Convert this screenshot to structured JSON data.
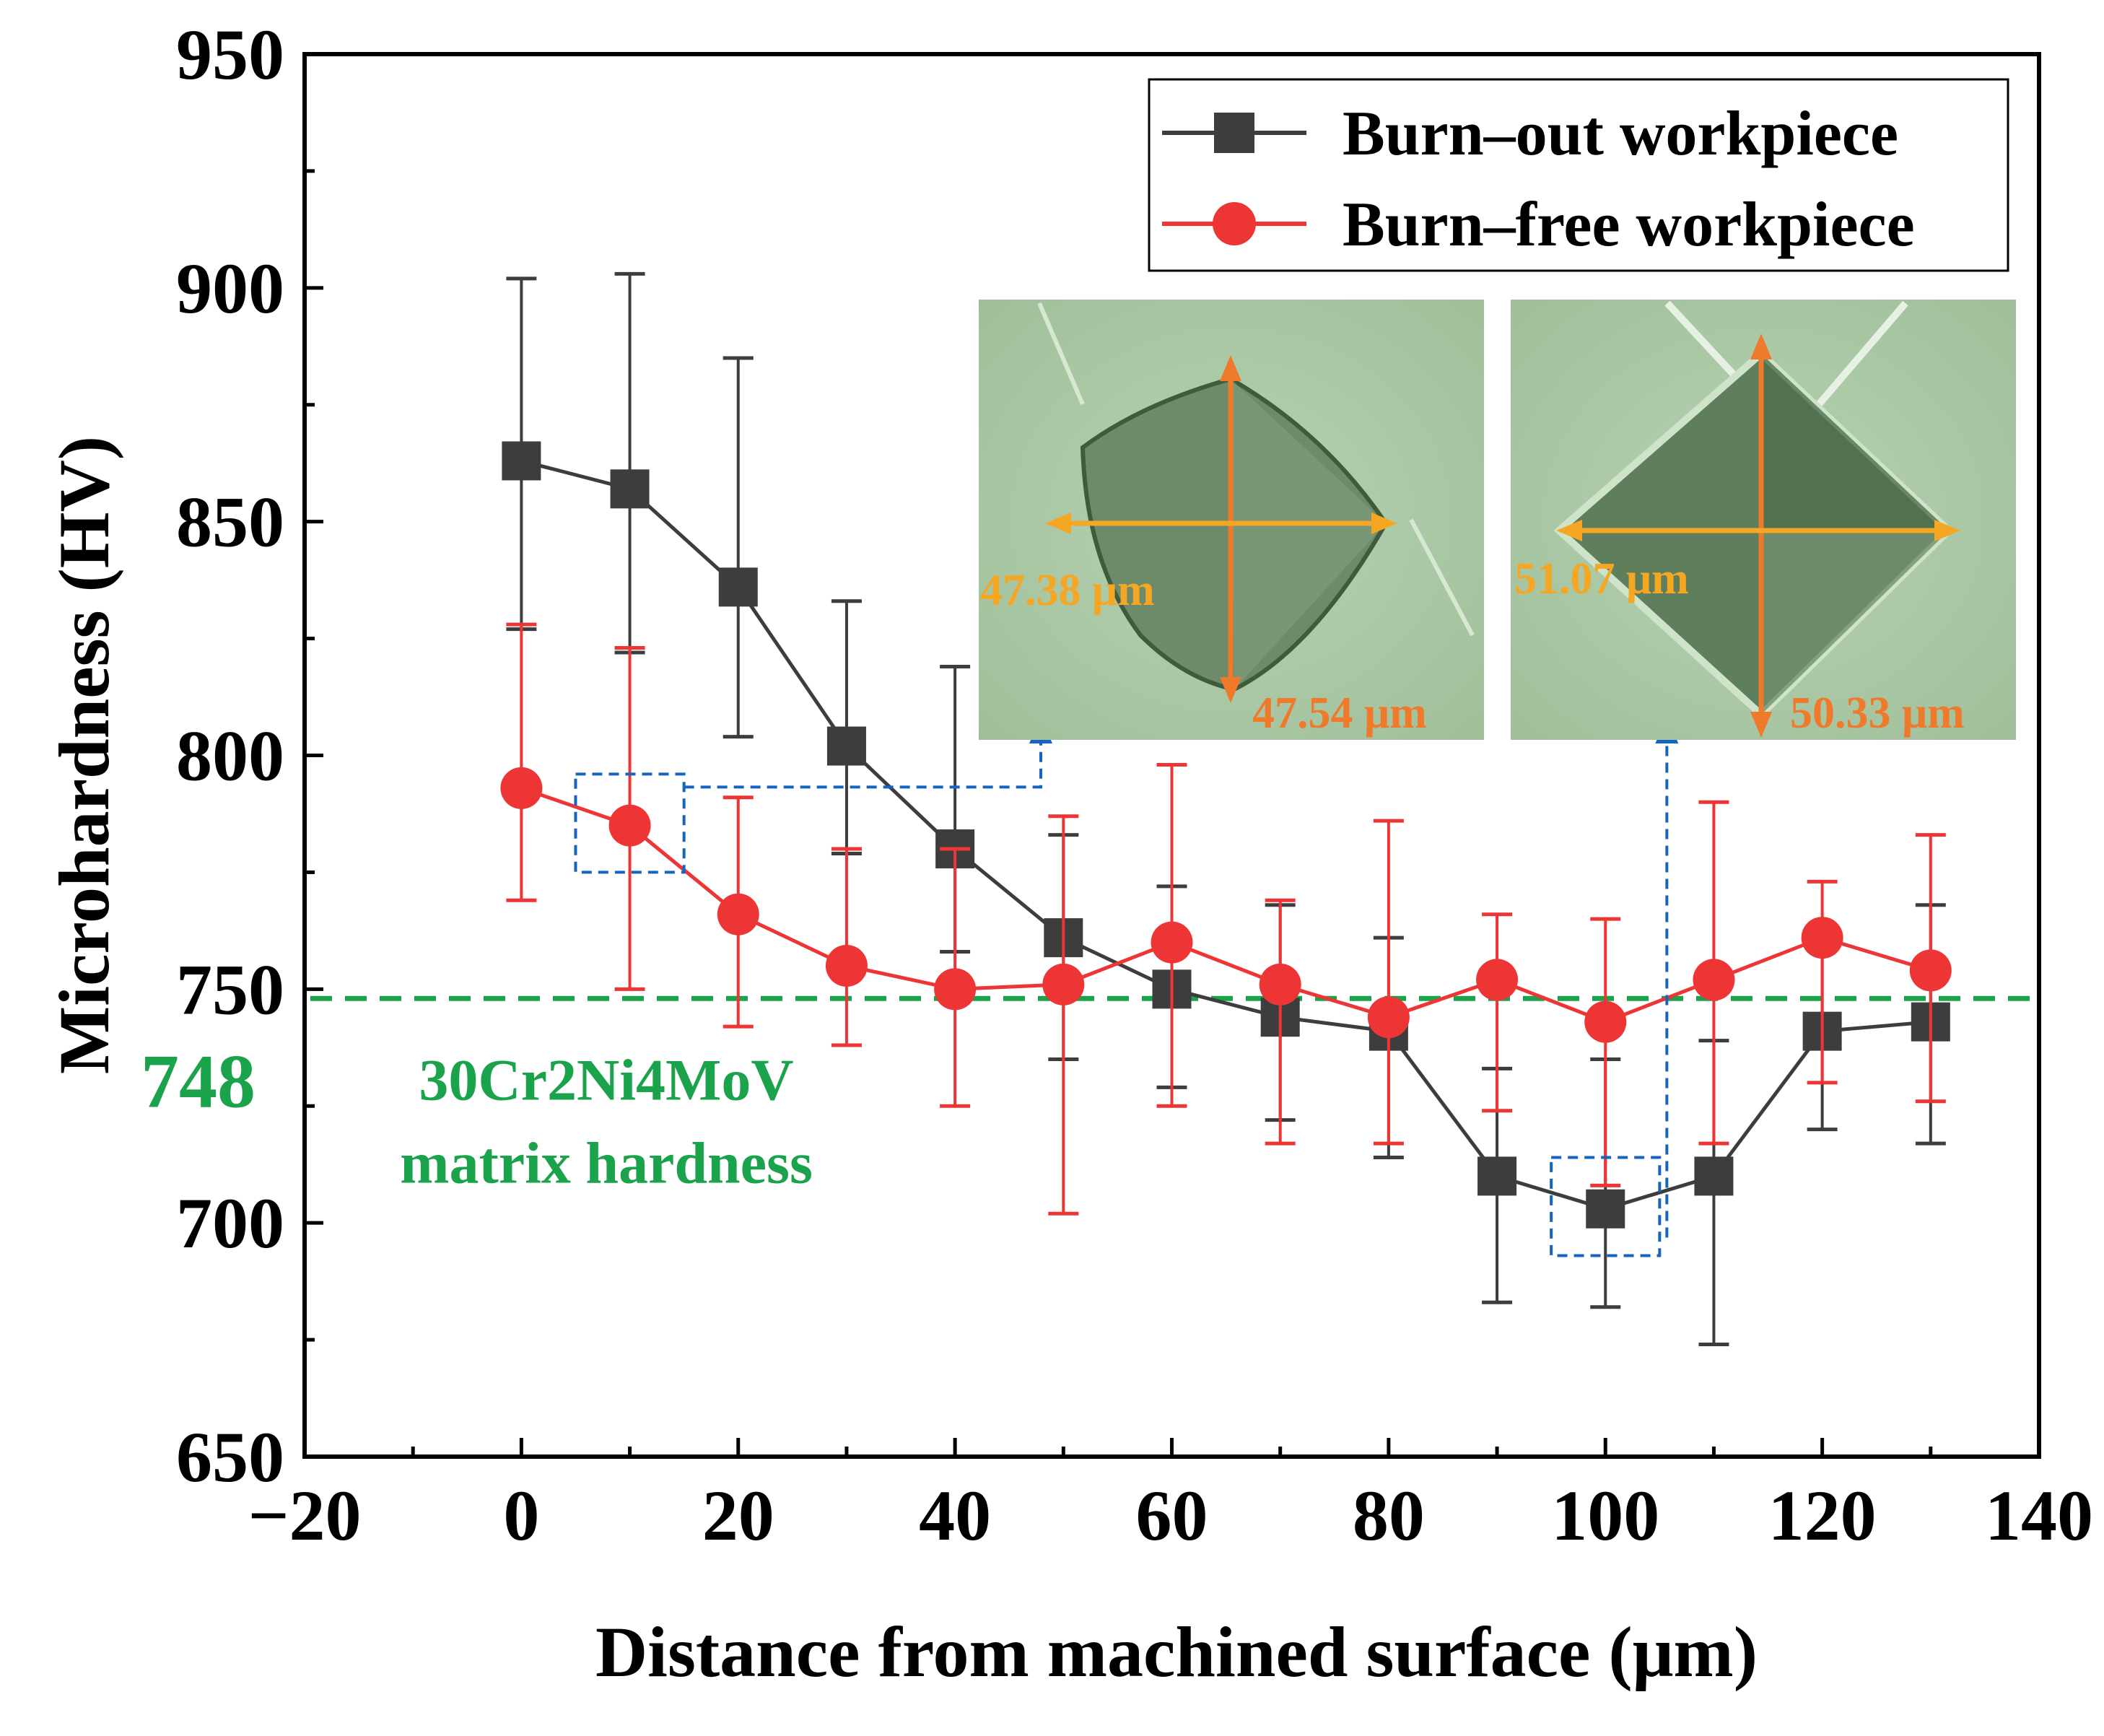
{
  "chart_data": {
    "type": "line",
    "title": "",
    "xlabel": "Distance from machined surface  (μm)",
    "ylabel": "Microhardness  (HV)",
    "xlim": [
      -20,
      140
    ],
    "ylim": [
      650,
      950
    ],
    "x_ticks": [
      -20,
      0,
      20,
      40,
      60,
      80,
      100,
      120,
      140
    ],
    "x_tick_labels": [
      "−20",
      "0",
      "20",
      "40",
      "60",
      "80",
      "100",
      "120",
      "140"
    ],
    "y_ticks": [
      650,
      700,
      750,
      800,
      850,
      900,
      950
    ],
    "y_tick_labels": [
      "650",
      "700",
      "750",
      "800",
      "850",
      "900",
      "950"
    ],
    "legend_position": "top-right",
    "series": [
      {
        "name": "Burn–out workpiece",
        "color": "#3d3d3d",
        "marker": "square",
        "x": [
          0,
          10,
          20,
          30,
          40,
          50,
          60,
          70,
          80,
          90,
          100,
          110,
          120,
          130
        ],
        "y": [
          863,
          857,
          836,
          802,
          780,
          761,
          750,
          744,
          741,
          710,
          703,
          710,
          741,
          743
        ],
        "err_low": [
          827,
          822,
          804,
          779,
          758,
          735,
          729,
          722,
          714,
          683,
          682,
          674,
          720,
          717
        ],
        "err_high": [
          902,
          903,
          885,
          833,
          819,
          783,
          772,
          768,
          761,
          733,
          735,
          739,
          762,
          768
        ]
      },
      {
        "name": "Burn–free workpiece",
        "color": "#ee3535",
        "marker": "circle",
        "x": [
          0,
          10,
          20,
          30,
          40,
          50,
          60,
          70,
          80,
          90,
          100,
          110,
          120,
          130
        ],
        "y": [
          793,
          785,
          766,
          755,
          750,
          751,
          760,
          751,
          744,
          752,
          743,
          752,
          761,
          754
        ],
        "err_low": [
          769,
          750,
          742,
          738,
          725,
          702,
          725,
          717,
          717,
          724,
          708,
          717,
          730,
          726
        ],
        "err_high": [
          828,
          823,
          791,
          780,
          780,
          787,
          798,
          769,
          786,
          766,
          765,
          790,
          773,
          783
        ]
      }
    ],
    "reference_line": {
      "value": 748,
      "label": "748",
      "color": "#1aa34a",
      "annotation": [
        "30Cr2Ni4MoV",
        "matrix hardness"
      ]
    },
    "highlight_boxes": [
      {
        "x_range": [
          5,
          15
        ],
        "y_range": [
          775,
          796
        ]
      },
      {
        "x_range": [
          95,
          105
        ],
        "y_range": [
          693,
          714
        ]
      }
    ],
    "insets": [
      {
        "horizontal_label": "47.38 μm",
        "vertical_label": "47.54 μm"
      },
      {
        "horizontal_label": "51.07 μm",
        "vertical_label": "50.33 μm"
      }
    ],
    "colors": {
      "axis": "#000000",
      "inset_bg": "#a9c7a4",
      "horizontal_arrow": "#f5a623",
      "vertical_arrow": "#f07a2b",
      "callout": "#1565c0"
    }
  }
}
